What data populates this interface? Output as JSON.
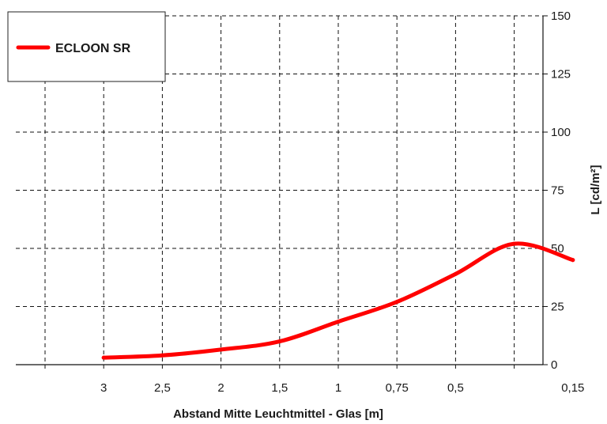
{
  "chart_data": {
    "type": "line",
    "title": "",
    "xlabel": "Abstand Mitte Leuchtmittel - Glas [m]",
    "ylabel": "L [cd/m²]",
    "x_tick_labels": [
      "3",
      "2,5",
      "2",
      "1,5",
      "1",
      "0,75",
      "0,5",
      "0,15"
    ],
    "y_tick_labels": [
      "0",
      "25",
      "50",
      "75",
      "100",
      "125",
      "150"
    ],
    "ylim": [
      0,
      150
    ],
    "grid": true,
    "y_axis_position": "right",
    "legend_position": "top-left",
    "series": [
      {
        "name": "ECLOON SR",
        "color": "#ff0000",
        "points": [
          {
            "x": "3",
            "y": 3
          },
          {
            "x": "2,5",
            "y": 4
          },
          {
            "x": "2",
            "y": 6.5
          },
          {
            "x": "1,5",
            "y": 10
          },
          {
            "x": "1",
            "y": 18.5
          },
          {
            "x": "0,75",
            "y": 27
          },
          {
            "x": "0,5",
            "y": 39
          },
          {
            "x": "",
            "y": 52
          },
          {
            "x": "0,15",
            "y": 45
          }
        ]
      }
    ]
  }
}
